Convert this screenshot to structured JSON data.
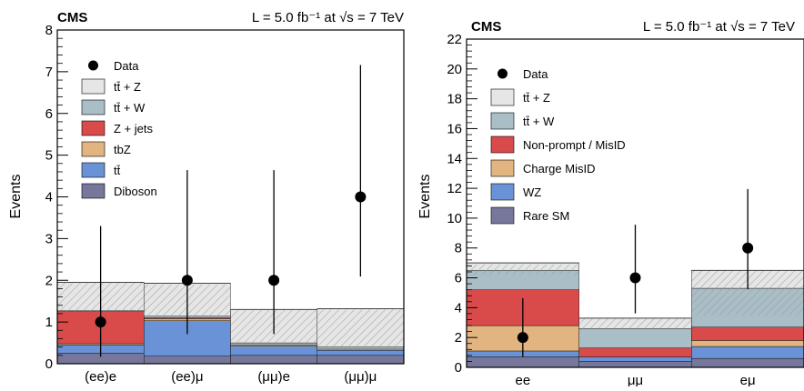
{
  "colors": {
    "ttZ": "#e6e6e6",
    "ttW": "#a9bec7",
    "zjets": "#d94b4b",
    "tbZ": "#e2b47f",
    "tt": "#6a92d6",
    "diboson": "#76779a",
    "nonprompt": "#d94b4b",
    "chargemisid": "#e2b47f",
    "wz": "#6a92d6",
    "raresm": "#76779a",
    "hatch": "#999999",
    "data": "#000000"
  },
  "chart_data": [
    {
      "type": "bar",
      "stacked": true,
      "experiment": "CMS",
      "lumi_text": "L =  5.0 fb⁻¹ at √s = 7 TeV",
      "ylabel": "Events",
      "ylim": [
        0,
        8
      ],
      "yticks": [
        "0",
        "1",
        "2",
        "3",
        "4",
        "5",
        "6",
        "7",
        "8"
      ],
      "categories": [
        "(ee)e",
        "(ee)μ",
        "(μμ)e",
        "(μμ)μ"
      ],
      "legend_position": "top-left",
      "series": [
        {
          "name": "Diboson",
          "color_key": "diboson",
          "values": [
            0.25,
            0.18,
            0.2,
            0.2
          ]
        },
        {
          "name": "tt̄",
          "color_key": "tt",
          "values": [
            0.2,
            0.85,
            0.22,
            0.12
          ]
        },
        {
          "name": "tbZ",
          "color_key": "tbZ",
          "values": [
            0.03,
            0.05,
            0.03,
            0.03
          ]
        },
        {
          "name": "Z + jets",
          "color_key": "zjets",
          "values": [
            0.77,
            0.02,
            0.0,
            0.0
          ]
        },
        {
          "name": "tt̄ + W",
          "color_key": "ttW",
          "values": [
            0.02,
            0.04,
            0.05,
            0.05
          ]
        },
        {
          "name": "tt̄ + Z",
          "color_key": "ttZ",
          "values": [
            0.68,
            0.79,
            0.8,
            0.92
          ]
        }
      ],
      "hatch_band": [
        [
          1.25,
          1.95
        ],
        [
          1.1,
          1.9
        ],
        [
          0.5,
          1.3
        ],
        [
          0.42,
          1.3
        ]
      ],
      "data": {
        "name": "Data",
        "values": [
          1,
          2,
          2,
          4
        ],
        "err_low": [
          0.83,
          1.29,
          1.29,
          1.91
        ],
        "err_high": [
          2.3,
          2.64,
          2.64,
          3.16
        ]
      }
    },
    {
      "type": "bar",
      "stacked": true,
      "experiment": "CMS",
      "lumi_text": "L = 5.0 fb⁻¹ at √s = 7 TeV",
      "ylabel": "Events",
      "ylim": [
        0,
        22
      ],
      "yticks": [
        "0",
        "2",
        "4",
        "6",
        "8",
        "10",
        "12",
        "14",
        "16",
        "18",
        "20",
        "22"
      ],
      "categories": [
        "ee",
        "μμ",
        "eμ"
      ],
      "legend_position": "top-left",
      "series": [
        {
          "name": "Rare SM",
          "color_key": "raresm",
          "values": [
            0.7,
            0.4,
            0.6
          ]
        },
        {
          "name": "WZ",
          "color_key": "wz",
          "values": [
            0.4,
            0.3,
            0.8
          ]
        },
        {
          "name": "Charge MisID",
          "color_key": "chargemisid",
          "values": [
            1.7,
            0.0,
            0.4
          ]
        },
        {
          "name": "Non-prompt / MisID",
          "color_key": "nonprompt",
          "values": [
            2.4,
            0.6,
            0.9
          ]
        },
        {
          "name": "tt̄ + W",
          "color_key": "ttW",
          "values": [
            1.3,
            1.3,
            2.6
          ]
        },
        {
          "name": "tt̄ + Z",
          "color_key": "ttZ",
          "values": [
            0.5,
            0.7,
            1.2
          ]
        }
      ],
      "hatch_band": [
        [
          6.2,
          6.9
        ],
        [
          2.5,
          3.3
        ],
        [
          3.5,
          6.5
        ]
      ],
      "data": {
        "name": "Data",
        "values": [
          2,
          6,
          8
        ],
        "err_low": [
          1.29,
          2.38,
          2.77
        ],
        "err_high": [
          2.64,
          3.56,
          3.95
        ]
      }
    }
  ]
}
